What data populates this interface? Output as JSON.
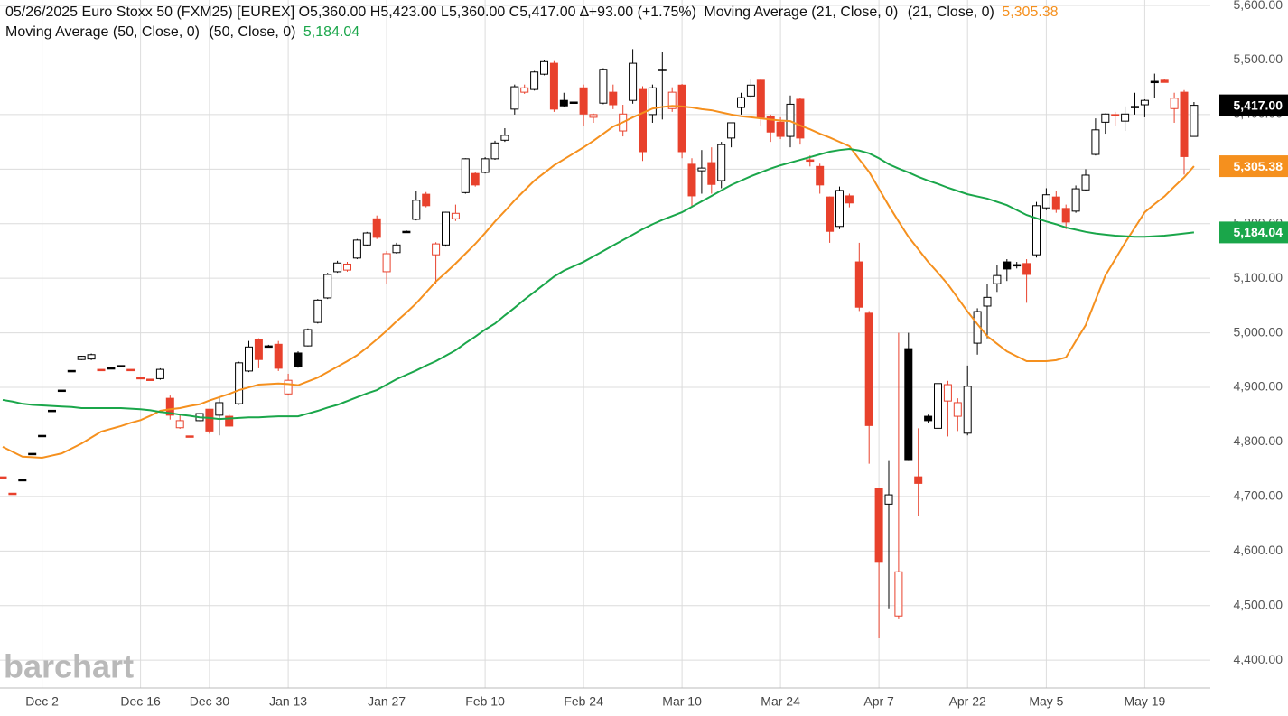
{
  "chart_data": {
    "type": "candlestick",
    "info": "05/26/2025 Euro Stoxx 50 (FXM25) [EUREX] O5,360.00 H5,423.00 L5,360.00 C5,417.00 ∆+93.00 (+1.75%)",
    "watermark": "barchart",
    "up_color": "#000000",
    "down_color": "#e8412c",
    "grid": true,
    "categories": [
      null,
      null,
      null,
      null,
      "Dec 2",
      null,
      null,
      null,
      null,
      null,
      null,
      null,
      null,
      null,
      "Dec 16",
      null,
      null,
      null,
      null,
      null,
      null,
      "Dec 30",
      null,
      null,
      null,
      null,
      null,
      null,
      null,
      "Jan 13",
      null,
      null,
      null,
      null,
      null,
      null,
      null,
      null,
      null,
      "Jan 27",
      null,
      null,
      null,
      null,
      null,
      null,
      null,
      null,
      null,
      "Feb 10",
      null,
      null,
      null,
      null,
      null,
      null,
      null,
      null,
      null,
      "Feb 24",
      null,
      null,
      null,
      null,
      null,
      null,
      null,
      null,
      null,
      "Mar 10",
      null,
      null,
      null,
      null,
      null,
      null,
      null,
      null,
      null,
      "Mar 24",
      null,
      null,
      null,
      null,
      null,
      null,
      null,
      null,
      null,
      "Apr 7",
      null,
      null,
      null,
      null,
      null,
      null,
      null,
      null,
      "Apr 22",
      null,
      null,
      null,
      null,
      null,
      null,
      null,
      "May 5",
      null,
      null,
      null,
      null,
      null,
      null,
      null,
      null,
      null,
      "May 19",
      null,
      null,
      null,
      null,
      null
    ],
    "open": [
      4736,
      4706,
      4731,
      4779,
      4812,
      4858,
      4895,
      4931,
      4951,
      4952,
      4933,
      4936,
      4940,
      4933,
      4918,
      4915,
      4916,
      4880,
      4826,
      4811,
      4839,
      4860,
      4849,
      4847,
      4870,
      4930,
      4988,
      4976,
      4979,
      4888,
      4963,
      4976,
      5019,
      5064,
      5112,
      5115,
      5137,
      5161,
      5209,
      5112,
      5147,
      5186,
      5208,
      5254,
      5143,
      5161,
      5209,
      5257,
      5292,
      5294,
      5319,
      5353,
      5410,
      5441,
      5446,
      5474,
      5494,
      5426,
      5423,
      5449,
      5395,
      5421,
      5441,
      5370,
      5426,
      5446,
      5400,
      5483,
      5411,
      5454,
      5309,
      5297,
      5312,
      5279,
      5357,
      5413,
      5434,
      5463,
      5396,
      5386,
      5360,
      5428,
      5317,
      5305,
      5249,
      5195,
      5251,
      5130,
      5036,
      4715,
      4686,
      4481,
      4971,
      4736,
      4847,
      4825,
      4875,
      4847,
      4816,
      4981,
      5049,
      5090,
      5130,
      5125,
      5127,
      5143,
      5229,
      5249,
      5228,
      5223,
      5262,
      5327,
      5386,
      5400,
      5388,
      5415,
      5418,
      5461,
      5463,
      5411,
      5441,
      5360
    ],
    "high": [
      4736,
      4706,
      4731,
      4779,
      4812,
      4858,
      4895,
      4931,
      4958,
      4962,
      4933,
      4936,
      4940,
      4933,
      4918,
      4915,
      4935,
      4885,
      4849,
      4811,
      4853,
      4860,
      4882,
      4850,
      4947,
      4985,
      4990,
      4978,
      4985,
      4925,
      4966,
      5008,
      5062,
      5110,
      5132,
      5130,
      5172,
      5185,
      5215,
      5150,
      5165,
      5188,
      5260,
      5258,
      5166,
      5222,
      5235,
      5320,
      5295,
      5322,
      5352,
      5375,
      5455,
      5455,
      5480,
      5500,
      5498,
      5440,
      5423,
      5455,
      5402,
      5485,
      5455,
      5418,
      5520,
      5452,
      5455,
      5514,
      5450,
      5456,
      5320,
      5335,
      5340,
      5350,
      5385,
      5440,
      5465,
      5465,
      5400,
      5395,
      5435,
      5430,
      5325,
      5310,
      5250,
      5268,
      5255,
      5165,
      5040,
      4715,
      4765,
      5000,
      5000,
      4825,
      4850,
      4915,
      4912,
      4880,
      4940,
      5045,
      5090,
      5125,
      5135,
      5130,
      5135,
      5240,
      5265,
      5260,
      5235,
      5270,
      5300,
      5393,
      5402,
      5405,
      5415,
      5440,
      5428,
      5475,
      5465,
      5440,
      5445,
      5423
    ],
    "low": [
      4736,
      4706,
      4731,
      4779,
      4812,
      4858,
      4895,
      4931,
      4950,
      4950,
      4933,
      4936,
      4940,
      4933,
      4918,
      4915,
      4914,
      4841,
      4824,
      4811,
      4838,
      4815,
      4812,
      4828,
      4868,
      4928,
      4935,
      4974,
      4930,
      4885,
      4936,
      4975,
      5017,
      5062,
      5110,
      5112,
      5135,
      5159,
      5172,
      5090,
      5145,
      5184,
      5206,
      5230,
      5090,
      5158,
      5205,
      5255,
      5268,
      5292,
      5317,
      5350,
      5400,
      5438,
      5444,
      5472,
      5405,
      5414,
      5423,
      5380,
      5385,
      5419,
      5410,
      5360,
      5420,
      5315,
      5385,
      5391,
      5405,
      5320,
      5230,
      5255,
      5255,
      5265,
      5340,
      5400,
      5430,
      5380,
      5350,
      5355,
      5340,
      5345,
      5305,
      5255,
      5165,
      5190,
      5230,
      5040,
      4760,
      4440,
      4495,
      4475,
      4765,
      4665,
      4835,
      4810,
      4810,
      4820,
      4812,
      4960,
      4990,
      5075,
      5095,
      5118,
      5055,
      5138,
      5225,
      5220,
      5190,
      5220,
      5260,
      5325,
      5365,
      5380,
      5370,
      5400,
      5395,
      5430,
      5459,
      5385,
      5290,
      5360
    ],
    "close": [
      4736,
      4706,
      4731,
      4779,
      4812,
      4858,
      4895,
      4931,
      4957,
      4960,
      4933,
      4936,
      4940,
      4933,
      4918,
      4915,
      4933,
      4849,
      4839,
      4811,
      4852,
      4820,
      4872,
      4829,
      4945,
      4974,
      4951,
      4976,
      4935,
      4913,
      4938,
      5006,
      5060,
      5107,
      5128,
      5126,
      5170,
      5183,
      5175,
      5145,
      5161,
      5186,
      5243,
      5233,
      5163,
      5221,
      5219,
      5319,
      5271,
      5319,
      5348,
      5362,
      5451,
      5449,
      5478,
      5497,
      5410,
      5416,
      5423,
      5401,
      5400,
      5483,
      5418,
      5401,
      5494,
      5332,
      5449,
      5483,
      5441,
      5332,
      5251,
      5302,
      5272,
      5345,
      5385,
      5431,
      5454,
      5395,
      5368,
      5360,
      5419,
      5357,
      5317,
      5271,
      5186,
      5261,
      5238,
      5047,
      4830,
      4581,
      4703,
      4562,
      4766,
      4724,
      4839,
      4907,
      4905,
      4872,
      4902,
      5039,
      5065,
      5105,
      5117,
      5125,
      5107,
      5233,
      5253,
      5226,
      5203,
      5264,
      5289,
      5372,
      5401,
      5400,
      5401,
      5415,
      5426,
      5461,
      5459,
      5430,
      5323,
      5417
    ],
    "last_price_label": "5,417.00",
    "series": [
      {
        "name": "Moving Average (21, Close, 0)",
        "params": "(21, Close, 0)",
        "color": "#f5901e",
        "last_value_label": "5,305.38",
        "values": [
          4791,
          4782,
          4773,
          4772,
          4771,
          4775,
          4779,
          4788,
          4797,
          4808,
          4819,
          4824,
          4829,
          4835,
          4840,
          4848,
          4857,
          4860,
          4862,
          4866,
          4869,
          4876,
          4882,
          4888,
          4895,
          4900,
          4905,
          4906,
          4907,
          4906,
          4904,
          4911,
          4918,
          4928,
          4938,
          4948,
          4959,
          4973,
          4988,
          5004,
          5021,
          5037,
          5054,
          5074,
          5094,
          5110,
          5127,
          5145,
          5163,
          5183,
          5204,
          5223,
          5243,
          5261,
          5279,
          5293,
          5307,
          5318,
          5329,
          5340,
          5352,
          5365,
          5378,
          5386,
          5395,
          5403,
          5411,
          5414,
          5416,
          5415,
          5413,
          5410,
          5408,
          5404,
          5400,
          5397,
          5395,
          5393,
          5391,
          5389,
          5388,
          5380,
          5373,
          5365,
          5358,
          5350,
          5342,
          5318,
          5295,
          5264,
          5233,
          5204,
          5176,
          5153,
          5130,
          5110,
          5089,
          5064,
          5039,
          5016,
          4994,
          4980,
          4966,
          4957,
          4948,
          4948,
          4948,
          4950,
          4955,
          4985,
          5014,
          5060,
          5105,
          5135,
          5165,
          5193,
          5221,
          5236,
          5250,
          5268,
          5285,
          5305.38
        ]
      },
      {
        "name": "Moving Average (50, Close, 0)",
        "params": "(50, Close, 0)",
        "color": "#1aa64a",
        "last_value_label": "5,184.04",
        "values": [
          4877,
          4874,
          4870,
          4868,
          4867,
          4866,
          4865,
          4864,
          4862,
          4862,
          4862,
          4862,
          4862,
          4861,
          4860,
          4858,
          4855,
          4853,
          4850,
          4848,
          4845,
          4844,
          4842,
          4843,
          4844,
          4845,
          4845,
          4846,
          4847,
          4847,
          4847,
          4852,
          4857,
          4863,
          4868,
          4875,
          4882,
          4889,
          4895,
          4905,
          4915,
          4923,
          4931,
          4940,
          4948,
          4958,
          4968,
          4981,
          4993,
          5006,
          5017,
          5032,
          5046,
          5061,
          5075,
          5089,
          5103,
          5114,
          5122,
          5130,
          5140,
          5150,
          5160,
          5170,
          5180,
          5190,
          5199,
          5207,
          5214,
          5221,
          5231,
          5241,
          5251,
          5261,
          5271,
          5279,
          5287,
          5294,
          5301,
          5307,
          5312,
          5317,
          5322,
          5327,
          5332,
          5335,
          5337,
          5334,
          5329,
          5320,
          5309,
          5301,
          5294,
          5286,
          5279,
          5273,
          5266,
          5260,
          5254,
          5250,
          5246,
          5240,
          5234,
          5225,
          5216,
          5210,
          5204,
          5199,
          5193,
          5189,
          5185,
          5182,
          5180,
          5178,
          5177,
          5176,
          5176,
          5177,
          5178,
          5180,
          5182,
          5184.04
        ]
      }
    ],
    "ylim": [
      4349,
      5610
    ],
    "yticks": [
      {
        "value": 4400,
        "label": "4,400.00"
      },
      {
        "value": 4500,
        "label": "4,500.00"
      },
      {
        "value": 4600,
        "label": "4,600.00"
      },
      {
        "value": 4700,
        "label": "4,700.00"
      },
      {
        "value": 4800,
        "label": "4,800.00"
      },
      {
        "value": 4900,
        "label": "4,900.00"
      },
      {
        "value": 5000,
        "label": "5,000.00"
      },
      {
        "value": 5100,
        "label": "5,100.00"
      },
      {
        "value": 5200,
        "label": "5,200.00"
      },
      {
        "value": 5300,
        "label": "5,300.00"
      },
      {
        "value": 5400,
        "label": "5,400.00"
      },
      {
        "value": 5500,
        "label": "5,500.00"
      },
      {
        "value": 5600,
        "label": "5,600.00"
      }
    ]
  }
}
